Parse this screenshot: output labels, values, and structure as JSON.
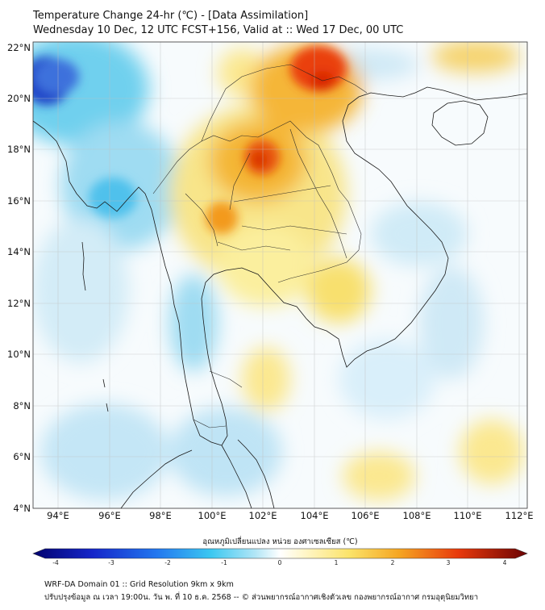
{
  "title_line1": "Temperature Change 24-hr (℃) - [Data Assimilation]",
  "title_line2": "Wednesday 10 Dec, 12 UTC FCST+156, Valid at :: Wed 17 Dec, 00 UTC",
  "lon_ticks": [
    "94°E",
    "96°E",
    "98°E",
    "100°E",
    "102°E",
    "104°E",
    "106°E",
    "108°E",
    "110°E",
    "112°E"
  ],
  "lat_ticks": [
    "22°N",
    "20°N",
    "18°N",
    "16°N",
    "14°N",
    "12°N",
    "10°N",
    "8°N",
    "6°N",
    "4°N"
  ],
  "colorbar": {
    "label": "อุณหภูมิเปลี่ยนแปลง หน่วย องศาเซลเซียส (℃)",
    "ticks": [
      "-4",
      "-3",
      "-2",
      "-1",
      "0",
      "1",
      "2",
      "3",
      "4"
    ],
    "min": -4,
    "max": 4
  },
  "footer_line1": "WRF-DA Domain 01 :: Grid Resolution 9km x 9km",
  "footer_line2": "ปรับปรุงข้อมูล ณ เวลา 19:00น. วัน พ. ที่ 10 ธ.ค. 2568 -- © ส่วนพยากรณ์อากาศเชิงตัวเลข กองพยากรณ์อากาศ กรมอุตุนิยมวิทยา",
  "colors": {
    "warm_max": "#e81a05",
    "warm_mid": "#f39a1e",
    "warm_low": "#f8e58a",
    "neutral": "#ffffff",
    "cool_low": "#c4e6f6",
    "cool_mid": "#6fd0ee",
    "cool_max": "#1e3fc6",
    "coast": "#1a1a1a"
  }
}
